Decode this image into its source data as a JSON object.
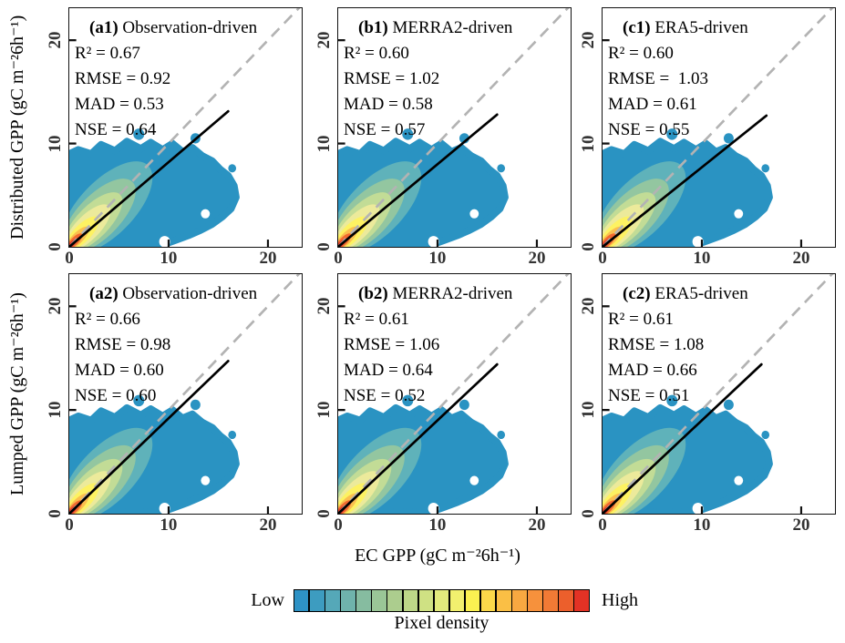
{
  "colors": {
    "cloud_blue": "#2a93c2",
    "contours": [
      "#2a93c2",
      "#5fb2ba",
      "#93c6a0",
      "#c2dc96",
      "#ecea9b",
      "#fdf262",
      "#fbbf4e",
      "#f26a31",
      "#dc2f23"
    ],
    "identity_line": "#b3b3b3",
    "regression_line": "#000000"
  },
  "figure": {
    "row1_ylabel": "Distributed GPP (gC m⁻²6h⁻¹)",
    "row2_ylabel": "Lumped GPP (gC m⁻²6h⁻¹)",
    "xlabel": "EC GPP (gC m⁻²6h⁻¹)",
    "x_ticks": [
      "0",
      "10",
      "20"
    ],
    "y_ticks": [
      "0",
      "10",
      "20"
    ],
    "colorbar": {
      "low_label": "Low",
      "high_label": "High",
      "title": "Pixel density"
    }
  },
  "panels": [
    {
      "label": "(a1)",
      "title": "Observation-driven",
      "r2": "R² = 0.67",
      "rmse": "RMSE = 0.92",
      "mad": "MAD = 0.53",
      "nse": "NSE = 0.64"
    },
    {
      "label": "(b1)",
      "title": "MERRA2-driven",
      "r2": "R² = 0.60",
      "rmse": "RMSE = 1.02",
      "mad": "MAD = 0.58",
      "nse": "NSE = 0.57"
    },
    {
      "label": "(c1)",
      "title": "ERA5-driven",
      "r2": "R² = 0.60",
      "rmse": "RMSE =  1.03",
      "mad": "MAD = 0.61",
      "nse": "NSE = 0.55"
    },
    {
      "label": "(a2)",
      "title": "Observation-driven",
      "r2": "R² = 0.66",
      "rmse": "RMSE = 0.98",
      "mad": "MAD = 0.60",
      "nse": "NSE = 0.60"
    },
    {
      "label": "(b2)",
      "title": "MERRA2-driven",
      "r2": "R² = 0.61",
      "rmse": "RMSE = 1.06",
      "mad": "MAD = 0.64",
      "nse": "NSE = 0.52"
    },
    {
      "label": "(c2)",
      "title": "ERA5-driven",
      "r2": "R² = 0.61",
      "rmse": "RMSE = 1.08",
      "mad": "MAD = 0.66",
      "nse": "NSE = 0.51"
    }
  ],
  "chart_data": {
    "type": "scatter",
    "subtype": "density-scatter-grid",
    "layout": "2 rows x 3 columns",
    "x_axis": {
      "label": "EC GPP (gC m⁻²6h⁻¹)",
      "range": [
        0,
        23.4
      ],
      "ticks": [
        0,
        10,
        20
      ]
    },
    "y_axes": [
      {
        "row": 1,
        "label": "Distributed GPP (gC m⁻²6h⁻¹)",
        "range": [
          0,
          23.1
        ],
        "ticks": [
          0,
          10,
          20
        ]
      },
      {
        "row": 2,
        "label": "Lumped GPP (gC m⁻²6h⁻¹)",
        "range": [
          0,
          23.1
        ],
        "ticks": [
          0,
          10,
          20
        ]
      }
    ],
    "identity_line": {
      "style": "dashed",
      "color": "#b3b3b3",
      "from": [
        0,
        0
      ],
      "to": [
        23.4,
        23.4
      ]
    },
    "density_extent": {
      "x_max": 17,
      "y_max": 10.5,
      "peak_near": [
        0.5,
        0.5
      ],
      "description": "KDE density cloud concentrated near origin, blue low-density fan spanning 0-16 on x and 0-10 on y, warm colors (yellow-red) at origin along 1:1 direction"
    },
    "panels": [
      {
        "id": "a1",
        "row": 1,
        "col": 1,
        "forcing": "Observation-driven",
        "R2": 0.67,
        "RMSE": 0.92,
        "MAD": 0.53,
        "NSE": 0.64,
        "regression": {
          "slope": 0.82,
          "x_start": 0,
          "x_end": 16
        }
      },
      {
        "id": "b1",
        "row": 1,
        "col": 2,
        "forcing": "MERRA2-driven",
        "R2": 0.6,
        "RMSE": 1.02,
        "MAD": 0.58,
        "NSE": 0.57,
        "regression": {
          "slope": 0.8,
          "x_start": 0,
          "x_end": 16
        }
      },
      {
        "id": "c1",
        "row": 1,
        "col": 3,
        "forcing": "ERA5-driven",
        "R2": 0.6,
        "RMSE": 1.03,
        "MAD": 0.61,
        "NSE": 0.55,
        "regression": {
          "slope": 0.77,
          "x_start": 0,
          "x_end": 16.5
        }
      },
      {
        "id": "a2",
        "row": 2,
        "col": 1,
        "forcing": "Observation-driven",
        "R2": 0.66,
        "RMSE": 0.98,
        "MAD": 0.6,
        "NSE": 0.6,
        "regression": {
          "slope": 0.92,
          "x_start": 0,
          "x_end": 16
        }
      },
      {
        "id": "b2",
        "row": 2,
        "col": 2,
        "forcing": "MERRA2-driven",
        "R2": 0.61,
        "RMSE": 1.06,
        "MAD": 0.64,
        "NSE": 0.52,
        "regression": {
          "slope": 0.9,
          "x_start": 0,
          "x_end": 16
        }
      },
      {
        "id": "c2",
        "row": 2,
        "col": 3,
        "forcing": "ERA5-driven",
        "R2": 0.61,
        "RMSE": 1.08,
        "MAD": 0.66,
        "NSE": 0.51,
        "regression": {
          "slope": 0.9,
          "x_start": 0,
          "x_end": 16
        }
      }
    ],
    "colorbar": {
      "title": "Pixel density",
      "low": "Low",
      "high": "High",
      "orientation": "horizontal",
      "cells": 19,
      "colors": [
        "#2e92c5",
        "#3d9cc0",
        "#55a8b8",
        "#6fb3ac",
        "#86bca0",
        "#9ac697",
        "#accd8e",
        "#bdd788",
        "#cfe183",
        "#e2ea7d",
        "#f2f06e",
        "#fbf151",
        "#fbd84a",
        "#fabf45",
        "#f8a841",
        "#f6913c",
        "#f17a35",
        "#ec5f2c",
        "#e33225"
      ]
    }
  }
}
